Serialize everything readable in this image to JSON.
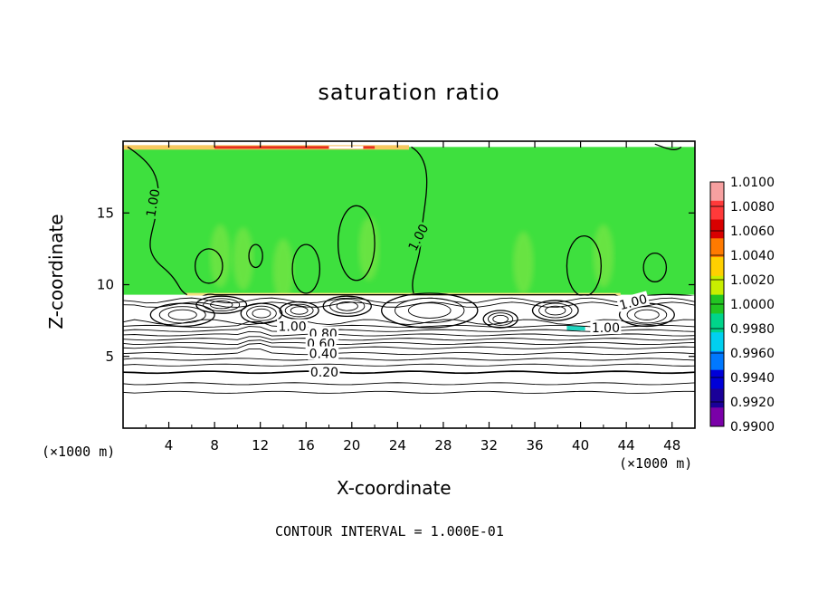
{
  "chart_data": {
    "type": "heatmap",
    "title": "saturation ratio",
    "xlabel": "X-coordinate",
    "ylabel": "Z-coordinate",
    "x_unit_left": "(×1000 m)",
    "x_unit_right": "(×1000 m)",
    "xlim": [
      0,
      50
    ],
    "ylim": [
      0,
      20
    ],
    "x_ticks": [
      4,
      8,
      12,
      16,
      20,
      24,
      28,
      32,
      36,
      40,
      44,
      48
    ],
    "y_ticks": [
      5,
      10,
      15
    ],
    "colorbar": {
      "min": 0.99,
      "max": 1.01,
      "labels": [
        "1.0100",
        "1.0080",
        "1.0060",
        "1.0040",
        "1.0020",
        "1.0000",
        "0.9980",
        "0.9960",
        "0.9940",
        "0.9920",
        "0.9900"
      ],
      "colors": [
        "#f7a0a0",
        "#ff3a3a",
        "#d80000",
        "#ff7a00",
        "#ffd000",
        "#c8ee00",
        "#22c622",
        "#00d48a",
        "#00d0f0",
        "#0078ff",
        "#0000d8",
        "#1a0098",
        "#7a00a8"
      ]
    },
    "field_color": "#3ee03e",
    "cloud_base_km": 9.3,
    "cloud_top_km": 19.6,
    "contour_interval": 0.1,
    "contour_labels": [
      {
        "text": "1.00",
        "x": 2.6,
        "y": 15.7,
        "angle": -80
      },
      {
        "text": "1.00",
        "x": 25.8,
        "y": 13.3,
        "angle": -62
      },
      {
        "text": "1.00",
        "x": 14.8,
        "y": 7.1,
        "angle": 0
      },
      {
        "text": "0.80",
        "x": 17.5,
        "y": 6.6,
        "angle": 0
      },
      {
        "text": "0.60",
        "x": 17.3,
        "y": 5.9,
        "angle": 0
      },
      {
        "text": "0.40",
        "x": 17.5,
        "y": 5.2,
        "angle": 0
      },
      {
        "text": "0.20",
        "x": 17.6,
        "y": 3.9,
        "angle": 0
      },
      {
        "text": "1.00",
        "x": 44.6,
        "y": 8.8,
        "angle": -15
      },
      {
        "text": "1.00",
        "x": 42.2,
        "y": 7.0,
        "angle": 0
      }
    ],
    "moist_bubbles": [
      {
        "x": 20.4,
        "y": 12.9,
        "rx": 1.6,
        "ry": 2.6
      },
      {
        "x": 16.0,
        "y": 11.1,
        "rx": 1.2,
        "ry": 1.7
      },
      {
        "x": 7.5,
        "y": 11.3,
        "rx": 1.2,
        "ry": 1.2
      },
      {
        "x": 11.6,
        "y": 12.0,
        "rx": 0.6,
        "ry": 0.8
      },
      {
        "x": 40.3,
        "y": 11.3,
        "rx": 1.5,
        "ry": 2.1
      },
      {
        "x": 46.5,
        "y": 11.2,
        "rx": 1.0,
        "ry": 1.0
      }
    ],
    "dry_lenses": [
      {
        "x": 5.2,
        "y": 7.9,
        "rx": 2.8,
        "ry": 0.8
      },
      {
        "x": 8.6,
        "y": 8.6,
        "rx": 2.2,
        "ry": 0.6
      },
      {
        "x": 12.1,
        "y": 8.0,
        "rx": 1.8,
        "ry": 0.7
      },
      {
        "x": 15.4,
        "y": 8.2,
        "rx": 1.7,
        "ry": 0.6
      },
      {
        "x": 19.6,
        "y": 8.5,
        "rx": 2.1,
        "ry": 0.7
      },
      {
        "x": 26.8,
        "y": 8.2,
        "rx": 4.2,
        "ry": 1.2
      },
      {
        "x": 33.0,
        "y": 7.6,
        "rx": 1.5,
        "ry": 0.6
      },
      {
        "x": 37.8,
        "y": 8.2,
        "rx": 2.0,
        "ry": 0.7
      },
      {
        "x": 45.8,
        "y": 7.9,
        "rx": 2.4,
        "ry": 0.8
      }
    ],
    "layer_lines": [
      7.1,
      6.8,
      6.5,
      6.2,
      5.9,
      5.6,
      5.2,
      4.8,
      4.4,
      3.9,
      3.1,
      2.5
    ]
  },
  "footer": "CONTOUR INTERVAL = 1.000E-01"
}
